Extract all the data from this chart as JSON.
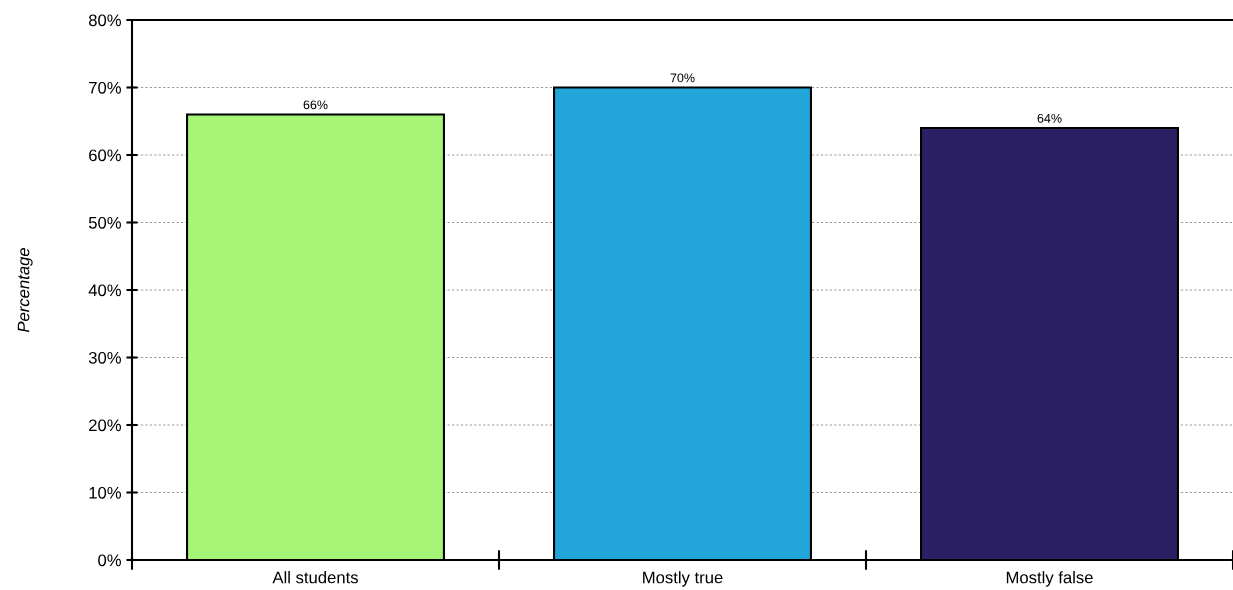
{
  "chart_data": {
    "type": "bar",
    "ylabel": "Percentage",
    "categories": [
      "All students",
      "Mostly true",
      "Mostly false"
    ],
    "values": [
      66,
      70,
      64
    ],
    "colors": [
      "#a6f576",
      "#22a5d8",
      "#2b2064"
    ],
    "value_labels": [
      "66%",
      "70%",
      "64%"
    ],
    "ylim": [
      0,
      80
    ],
    "yticks": [
      {
        "value": 0,
        "label": "0%"
      },
      {
        "value": 10,
        "label": "10%"
      },
      {
        "value": 20,
        "label": "20%"
      },
      {
        "value": 30,
        "label": "30%"
      },
      {
        "value": 40,
        "label": "40%"
      },
      {
        "value": 50,
        "label": "50%"
      },
      {
        "value": 60,
        "label": "60%"
      },
      {
        "value": 70,
        "label": "70%"
      },
      {
        "value": 80,
        "label": "80%"
      }
    ],
    "grid": "y"
  }
}
